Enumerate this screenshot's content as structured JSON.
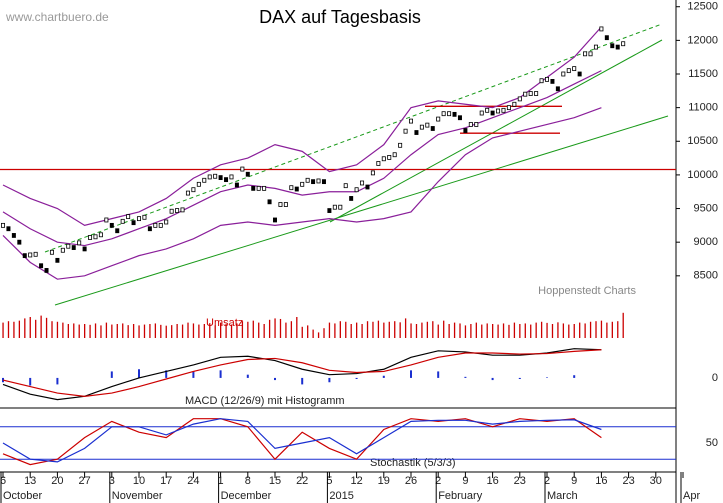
{
  "chart_data": {
    "type": "stock",
    "title": "DAX auf Tagesbasis",
    "watermark": "www.chartbuero.de",
    "source": "Hoppenstedt Charts",
    "volume_label": "Umsatz",
    "macd_label": "MACD (12/26/9) mit Histogramm",
    "stoch_label": "Stochastik (5/3/3)",
    "day_labels": [
      "6",
      "13",
      "20",
      "27",
      "3",
      "10",
      "17",
      "24",
      "1",
      "8",
      "15",
      "22",
      "5",
      "12",
      "19",
      "26",
      "2",
      "9",
      "16",
      "23",
      "2",
      "9",
      "16",
      "23",
      "30",
      null
    ],
    "month_labels": [
      "October",
      null,
      null,
      null,
      "November",
      null,
      null,
      null,
      "December",
      null,
      null,
      null,
      "2015",
      null,
      null,
      null,
      "February",
      null,
      null,
      null,
      "March",
      null,
      null,
      null,
      null,
      "Apr"
    ],
    "ylim": [
      8200,
      12600
    ],
    "yticks": [
      8500,
      9000,
      9500,
      10000,
      10500,
      11000,
      11500,
      12000,
      12500
    ],
    "close": [
      9250,
      9200,
      9100,
      9000,
      8800,
      8810,
      8820,
      8650,
      8580,
      8850,
      8730,
      8880,
      8940,
      8920,
      8990,
      8900,
      9070,
      9080,
      9110,
      9330,
      9250,
      9170,
      9310,
      9380,
      9290,
      9350,
      9370,
      9200,
      9250,
      9250,
      9300,
      9460,
      9470,
      9480,
      9730,
      9780,
      9860,
      9920,
      9970,
      9980,
      9960,
      9930,
      9970,
      9850,
      10087,
      10010,
      9800,
      9800,
      9800,
      9600,
      9330,
      9560,
      9560,
      9810,
      9790,
      9860,
      9920,
      9900,
      9910,
      9900,
      9470,
      9520,
      9520,
      9840,
      9650,
      9780,
      9880,
      9820,
      10030,
      10170,
      10240,
      10260,
      10300,
      10440,
      10650,
      10800,
      10630,
      10710,
      10740,
      10690,
      10830,
      10910,
      10910,
      10900,
      10850,
      10660,
      10750,
      10750,
      10920,
      10960,
      10920,
      10950,
      10960,
      11000,
      11050,
      11130,
      11200,
      11210,
      11210,
      11400,
      11420,
      11390,
      11280,
      11500,
      11550,
      11580,
      11500,
      11800,
      11800,
      11900,
      12170,
      12040,
      11920,
      11900,
      11950
    ],
    "candle_color": "#000000",
    "bollinger": {
      "color": "#8a1f9a",
      "upper": [
        9850,
        9650,
        9500,
        9250,
        9350,
        9450,
        9650,
        9950,
        10150,
        10250,
        10450,
        10350,
        10050,
        10150,
        10450,
        11000,
        11100,
        11050,
        11000,
        11150,
        11450,
        11750,
        12200
      ],
      "middle": [
        9450,
        9200,
        9000,
        8950,
        9050,
        9200,
        9350,
        9550,
        9750,
        9850,
        9800,
        9700,
        9750,
        9750,
        9950,
        10300,
        10600,
        10700,
        10850,
        11000,
        11150,
        11350,
        11550
      ],
      "lower": [
        9100,
        8700,
        8450,
        8500,
        8650,
        8800,
        8900,
        9050,
        9250,
        9300,
        9250,
        9300,
        9350,
        9300,
        9350,
        9450,
        9900,
        10300,
        10550,
        10650,
        10750,
        10850,
        11000
      ]
    },
    "levels": [
      10080,
      11020,
      10620
    ],
    "level_color": "#cc0000",
    "volume": [
      55,
      60,
      58,
      62,
      70,
      75,
      65,
      80,
      72,
      60,
      58,
      55,
      50,
      52,
      48,
      50,
      47,
      52,
      45,
      55,
      48,
      50,
      52,
      46,
      50,
      45,
      48,
      50,
      52,
      47,
      44,
      46,
      50,
      48,
      55,
      52,
      48,
      50,
      53,
      45,
      55,
      50,
      48,
      52,
      60,
      58,
      62,
      55,
      50,
      65,
      70,
      68,
      55,
      60,
      75,
      40,
      45,
      30,
      20,
      35,
      55,
      52,
      60,
      58,
      50,
      55,
      50,
      60,
      58,
      62,
      55,
      58,
      60,
      56,
      70,
      52,
      50,
      55,
      58,
      60,
      48,
      62,
      50,
      55,
      52,
      45,
      50,
      55,
      48,
      52,
      50,
      48,
      52,
      47,
      55,
      50,
      52,
      48,
      55,
      58,
      54,
      50,
      56,
      52,
      48,
      50,
      55,
      52,
      58,
      60,
      62,
      55,
      58,
      60,
      90
    ],
    "volume_color": "#cc0000",
    "macd": {
      "ylim": [
        -250,
        350
      ],
      "yticks": [
        0
      ],
      "series": [
        {
          "color": "#000000",
          "values": [
            -60,
            -150,
            -200,
            -170,
            -80,
            0,
            60,
            120,
            190,
            200,
            160,
            80,
            30,
            40,
            80,
            190,
            250,
            240,
            210,
            210,
            230,
            270,
            260
          ]
        },
        {
          "color": "#cc0000",
          "values": [
            -20,
            -80,
            -140,
            -170,
            -140,
            -80,
            -10,
            60,
            120,
            170,
            180,
            140,
            70,
            50,
            60,
            120,
            190,
            230,
            230,
            220,
            225,
            245,
            260
          ]
        }
      ],
      "histogram": [
        -40,
        -70,
        -60,
        0,
        60,
        80,
        70,
        60,
        70,
        30,
        -20,
        -60,
        -40,
        -10,
        20,
        70,
        60,
        10,
        -20,
        -10,
        5,
        25,
        0
      ],
      "histogram_color": "#1a2fd0"
    },
    "stoch": {
      "ylim": [
        0,
        100
      ],
      "yticks": [
        50
      ],
      "bands": [
        20,
        80
      ],
      "band_color": "#1a2fd0",
      "series": [
        {
          "color": "#cc0000",
          "values": [
            30,
            10,
            20,
            60,
            90,
            70,
            60,
            95,
            95,
            80,
            20,
            70,
            40,
            20,
            75,
            95,
            90,
            95,
            80,
            95,
            90,
            95,
            60
          ]
        },
        {
          "color": "#1a2fd0",
          "values": [
            50,
            20,
            15,
            40,
            80,
            80,
            65,
            85,
            95,
            90,
            40,
            50,
            60,
            30,
            60,
            90,
            92,
            92,
            85,
            90,
            92,
            93,
            75
          ]
        }
      ]
    }
  }
}
